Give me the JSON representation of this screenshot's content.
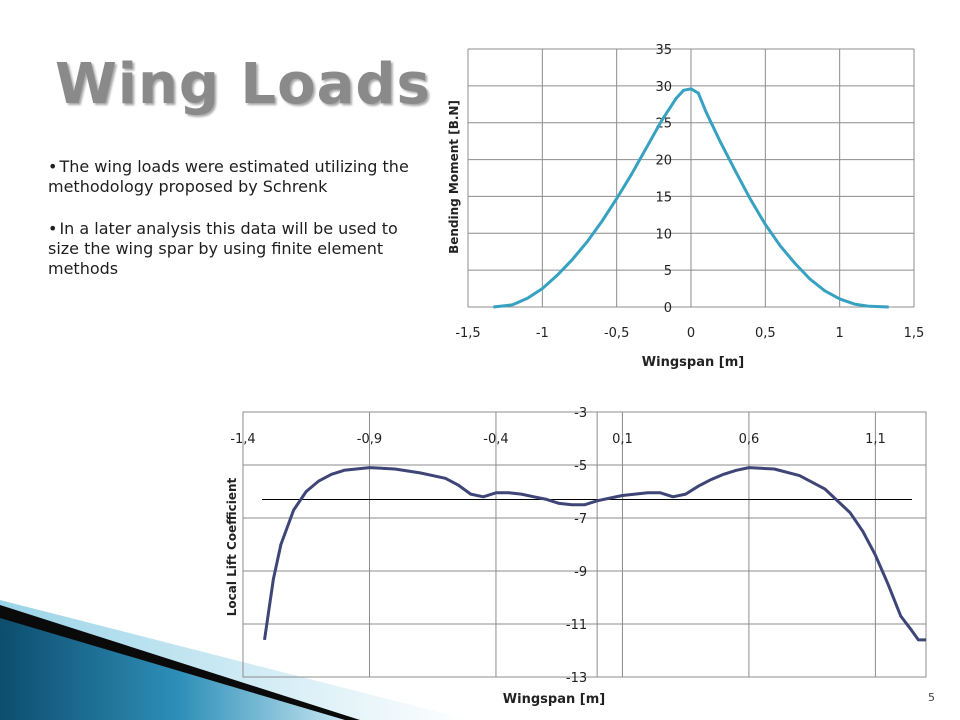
{
  "title": "Wing Loads",
  "bullets": [
    "The wing loads were estimated utilizing the methodology proposed by Schrenk",
    "In a later analysis this data will be used to size the wing spar by using finite element methods"
  ],
  "slide_number": "5",
  "colors": {
    "bending_line": "#36a1c0",
    "lift_line": "#3e4577",
    "title": "#8a8a8a",
    "grid": "#8c8c8c"
  },
  "chart_data": [
    {
      "type": "line",
      "title": "",
      "xlabel": "Wingspan [m]",
      "ylabel": "Bending Moment [B.N]",
      "xlim": [
        -1.5,
        1.5
      ],
      "ylim": [
        0,
        35
      ],
      "x_ticks": [
        "-1,5",
        "-1",
        "-0,5",
        "0",
        "0,5",
        "1",
        "1,5"
      ],
      "y_ticks": [
        "0",
        "5",
        "10",
        "15",
        "20",
        "25",
        "30",
        "35"
      ],
      "grid": true,
      "series": [
        {
          "x": [
            -1.33,
            -1.2,
            -1.1,
            -1.0,
            -0.9,
            -0.8,
            -0.7,
            -0.6,
            -0.5,
            -0.4,
            -0.3,
            -0.2,
            -0.1,
            -0.05,
            0.0,
            0.05,
            0.1,
            0.2,
            0.3,
            0.4,
            0.5,
            0.6,
            0.7,
            0.8,
            0.9,
            1.0,
            1.1,
            1.2,
            1.33
          ],
          "y": [
            0.0,
            0.3,
            1.2,
            2.5,
            4.3,
            6.4,
            8.8,
            11.6,
            14.7,
            18.0,
            21.6,
            25.2,
            28.3,
            29.4,
            29.6,
            29.0,
            26.5,
            22.3,
            18.4,
            14.6,
            11.2,
            8.3,
            5.9,
            3.8,
            2.2,
            1.1,
            0.4,
            0.1,
            0.0
          ]
        }
      ]
    },
    {
      "type": "line",
      "title": "",
      "xlabel": "Wingspan [m]",
      "ylabel": "Local Lift Coefficient",
      "xlim": [
        -1.4,
        1.3
      ],
      "ylim": [
        -13,
        -3
      ],
      "x_ticks": [
        "-1,4",
        "-0,9",
        "-0,4",
        "0,1",
        "0,6",
        "1,1"
      ],
      "y_ticks": [
        "-3",
        "-5",
        "-7",
        "-9",
        "-11",
        "-13"
      ],
      "grid": true,
      "series": [
        {
          "x": [
            -1.315,
            -1.28,
            -1.25,
            -1.2,
            -1.15,
            -1.1,
            -1.05,
            -1.0,
            -0.9,
            -0.8,
            -0.7,
            -0.6,
            -0.55,
            -0.5,
            -0.45,
            -0.4,
            -0.35,
            -0.3,
            -0.25,
            -0.2,
            -0.15,
            -0.1,
            -0.07,
            -0.05,
            0.0,
            0.05,
            0.1,
            0.15,
            0.2,
            0.25,
            0.3,
            0.35,
            0.4,
            0.45,
            0.5,
            0.55,
            0.6,
            0.7,
            0.8,
            0.9,
            1.0,
            1.05,
            1.1,
            1.15,
            1.2,
            1.24,
            1.27,
            1.3
          ],
          "y": [
            -11.6,
            -9.3,
            -8.0,
            -6.7,
            -6.0,
            -5.6,
            -5.35,
            -5.2,
            -5.1,
            -5.15,
            -5.3,
            -5.5,
            -5.75,
            -6.1,
            -6.2,
            -6.05,
            -6.05,
            -6.1,
            -6.2,
            -6.3,
            -6.45,
            -6.5,
            -6.5,
            -6.5,
            -6.35,
            -6.25,
            -6.15,
            -6.1,
            -6.05,
            -6.05,
            -6.2,
            -6.1,
            -5.8,
            -5.55,
            -5.35,
            -5.2,
            -5.1,
            -5.15,
            -5.4,
            -5.9,
            -6.8,
            -7.5,
            -8.4,
            -9.5,
            -10.7,
            -11.2,
            -11.6,
            -11.6
          ],
          "note_y_reading": "values read from left axis tick labels; markers drawn at measured pixel scale"
        }
      ],
      "reference_line_y": -6.3
    }
  ]
}
